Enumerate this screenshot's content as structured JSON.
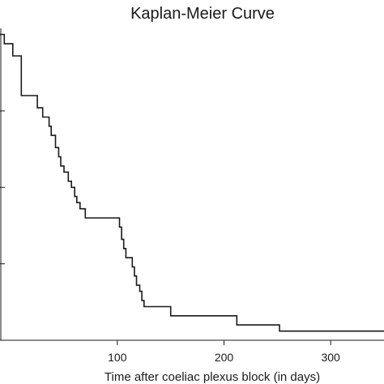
{
  "chart_data": {
    "type": "line",
    "step": true,
    "title": "Kaplan-Meier Curve",
    "xlabel": "Time after coeliac plexus block (in days)",
    "ylabel": "",
    "xlim": [
      -10,
      350
    ],
    "ylim": [
      0,
      1.02
    ],
    "xticks": [
      100,
      200,
      300
    ],
    "xtick_labels": [
      "100",
      "200",
      "300"
    ],
    "yticks": [
      0,
      0.25,
      0.5,
      0.75,
      1.0
    ],
    "grid": false,
    "series": [
      {
        "x": [
          -10,
          -6,
          2,
          10,
          25,
          30,
          36,
          38,
          42,
          45,
          47,
          50,
          54,
          57,
          60,
          62,
          65,
          70,
          102,
          104,
          106,
          108,
          114,
          116,
          118,
          121,
          123,
          125,
          150,
          212,
          252,
          350
        ],
        "y": [
          1.0,
          0.97,
          0.93,
          0.8,
          0.76,
          0.73,
          0.7,
          0.67,
          0.63,
          0.6,
          0.57,
          0.55,
          0.52,
          0.5,
          0.47,
          0.45,
          0.43,
          0.4,
          0.37,
          0.33,
          0.3,
          0.27,
          0.24,
          0.21,
          0.18,
          0.16,
          0.13,
          0.11,
          0.08,
          0.05,
          0.03,
          0.03
        ]
      }
    ]
  }
}
